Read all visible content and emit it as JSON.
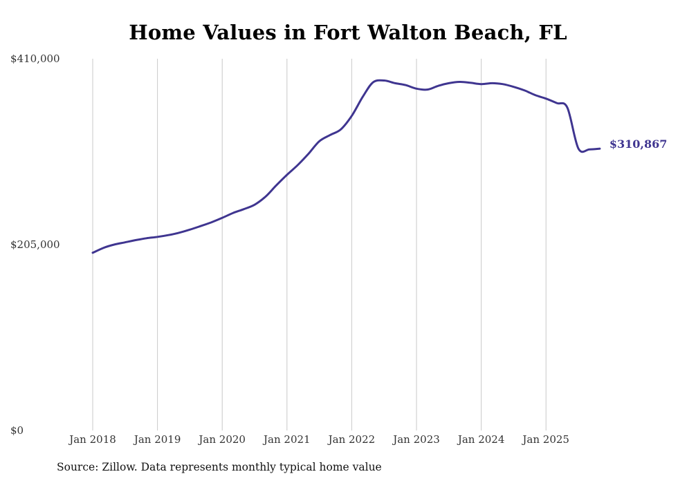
{
  "chart_data": {
    "type": "line",
    "title": "Home Values in Fort Walton Beach, FL",
    "xlabel": "",
    "ylabel": "",
    "ylim": [
      0,
      410000
    ],
    "y_ticks": [
      {
        "value": 0,
        "label": "$0"
      },
      {
        "value": 205000,
        "label": "$205,000"
      },
      {
        "value": 410000,
        "label": "$410,000"
      }
    ],
    "x_ticks": [
      {
        "value": 2018,
        "label": "Jan 2018"
      },
      {
        "value": 2019,
        "label": "Jan 2019"
      },
      {
        "value": 2020,
        "label": "Jan 2020"
      },
      {
        "value": 2021,
        "label": "Jan 2021"
      },
      {
        "value": 2022,
        "label": "Jan 2022"
      },
      {
        "value": 2023,
        "label": "Jan 2023"
      },
      {
        "value": 2024,
        "label": "Jan 2024"
      },
      {
        "value": 2025,
        "label": "Jan 2025"
      }
    ],
    "xlim": [
      2018,
      2025.92
    ],
    "grid": "vertical",
    "series": [
      {
        "name": "Typical home value",
        "color": "#3f3590",
        "x": [
          2018.0,
          2018.17,
          2018.33,
          2018.5,
          2018.67,
          2018.83,
          2019.0,
          2019.17,
          2019.33,
          2019.5,
          2019.67,
          2019.83,
          2020.0,
          2020.17,
          2020.33,
          2020.5,
          2020.67,
          2020.83,
          2021.0,
          2021.17,
          2021.33,
          2021.5,
          2021.67,
          2021.83,
          2022.0,
          2022.17,
          2022.33,
          2022.5,
          2022.67,
          2022.83,
          2023.0,
          2023.17,
          2023.33,
          2023.5,
          2023.67,
          2023.83,
          2024.0,
          2024.17,
          2024.33,
          2024.5,
          2024.67,
          2024.83,
          2025.0,
          2025.17,
          2025.33,
          2025.5,
          2025.67,
          2025.83
        ],
        "values": [
          196000,
          201500,
          205000,
          207500,
          210000,
          212000,
          213500,
          215500,
          218000,
          221500,
          225500,
          229500,
          234500,
          240000,
          244000,
          249000,
          258000,
          270000,
          282000,
          293000,
          305000,
          319000,
          326000,
          332000,
          347000,
          368000,
          384000,
          386000,
          383000,
          381000,
          377000,
          376000,
          380000,
          383000,
          384500,
          383500,
          382000,
          383000,
          382000,
          379000,
          375000,
          370000,
          366000,
          361000,
          356000,
          311000,
          310000,
          310867
        ]
      }
    ],
    "end_label": "$310,867"
  },
  "source": "Source: Zillow. Data represents monthly typical home value"
}
